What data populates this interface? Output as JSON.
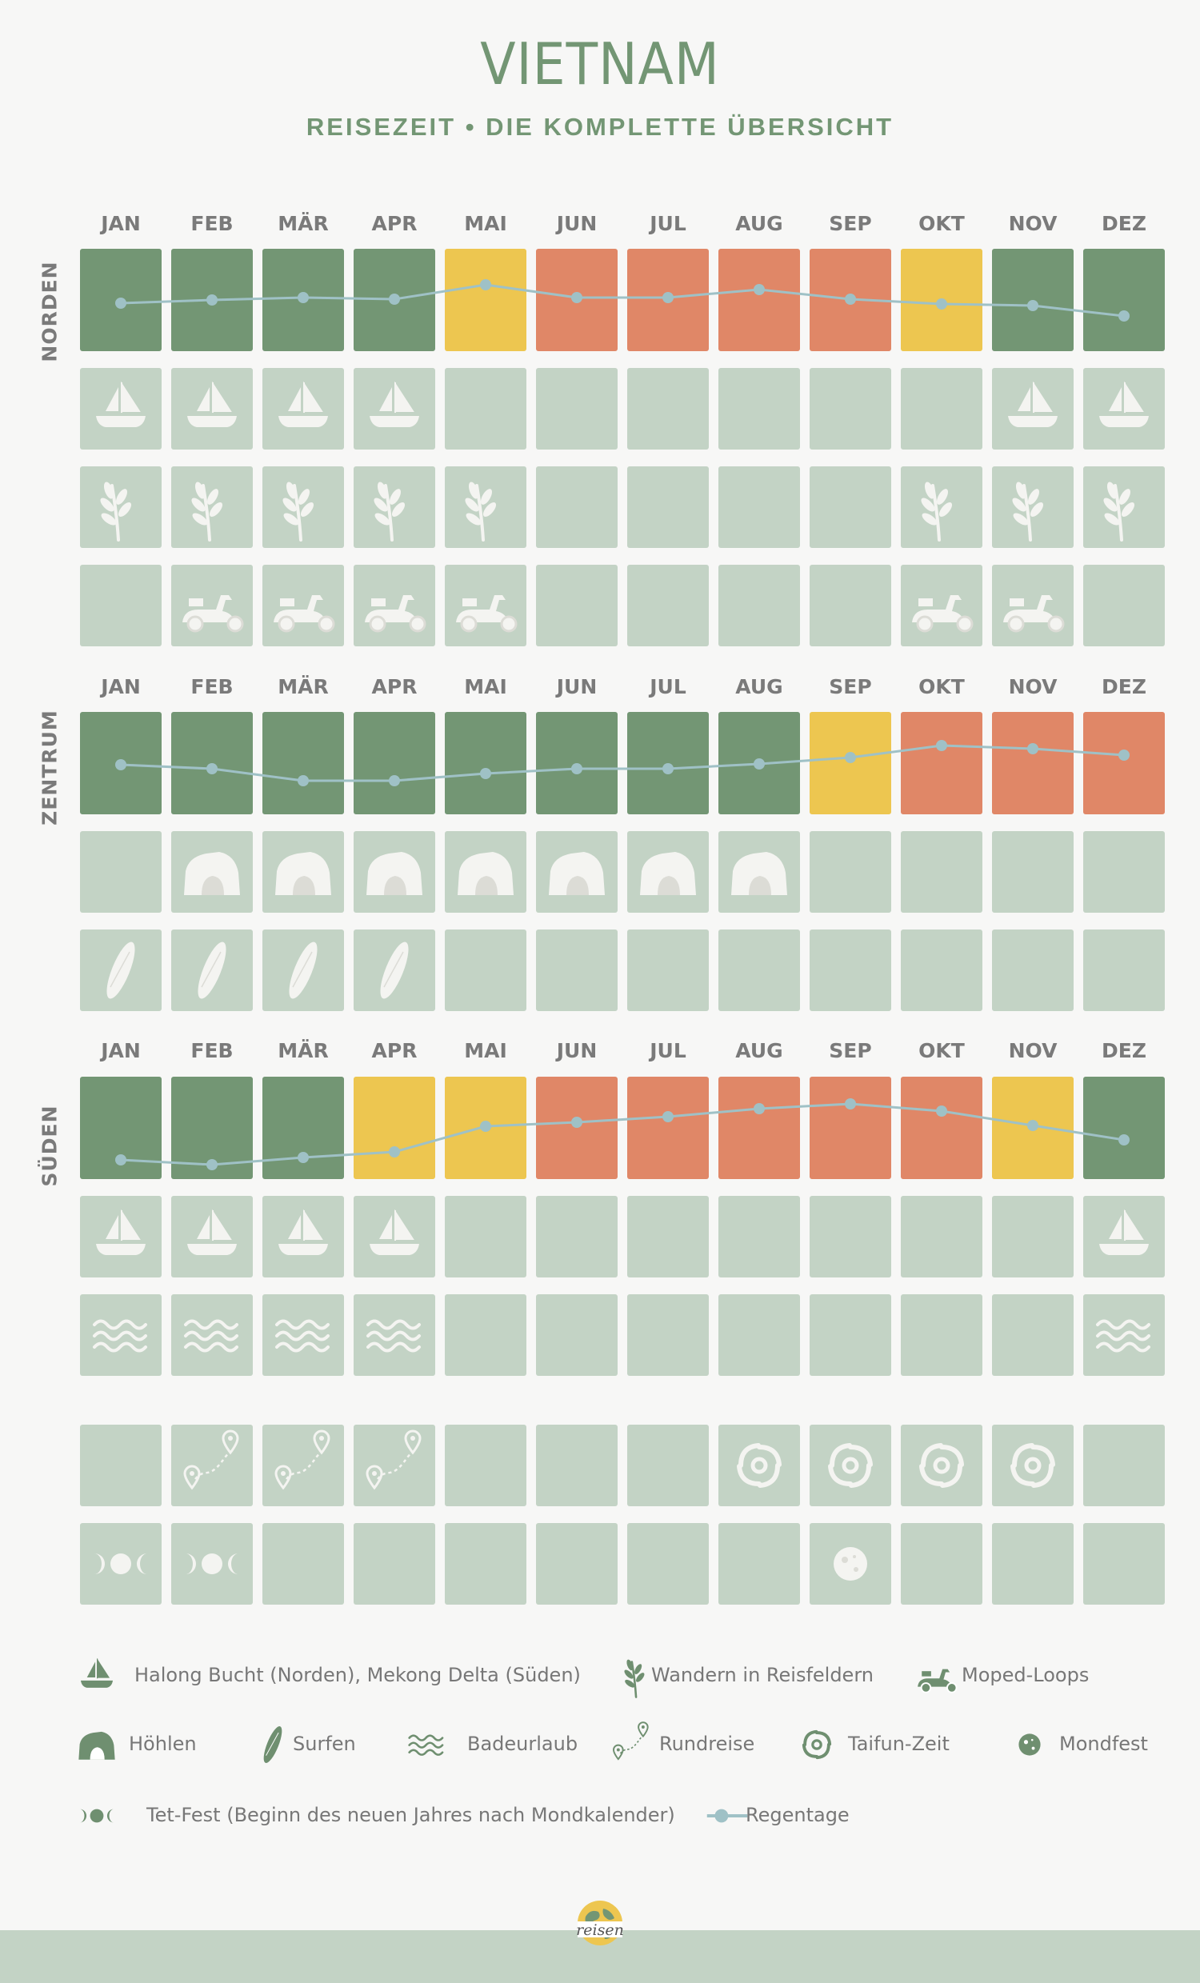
{
  "title": "VIETNAM",
  "subtitle": "REISEZEIT • DIE KOMPLETTE ÜBERSICHT",
  "months": [
    "JAN",
    "FEB",
    "MÄR",
    "APR",
    "MAI",
    "JUN",
    "JUL",
    "AUG",
    "SEP",
    "OKT",
    "NOV",
    "DEZ"
  ],
  "colors": {
    "good": "#739674",
    "mid": "#edc650",
    "bad": "#e08767",
    "empty": "#c3d3c5",
    "rain_line": "#9fc1c6",
    "icon": "#f4f4f1",
    "legend_icon": "#6f8f70"
  },
  "chart_data": [
    {
      "type": "heatmap",
      "region": "NORDEN",
      "categories": [
        "JAN",
        "FEB",
        "MÄR",
        "APR",
        "MAI",
        "JUN",
        "JUL",
        "AUG",
        "SEP",
        "OKT",
        "NOV",
        "DEZ"
      ],
      "climate_rating": [
        "good",
        "good",
        "good",
        "good",
        "mid",
        "bad",
        "bad",
        "bad",
        "bad",
        "mid",
        "good",
        "good"
      ],
      "rain_days_relative": [
        4.2,
        4.6,
        4.9,
        4.7,
        6.5,
        4.9,
        4.9,
        5.9,
        4.7,
        4.1,
        3.9,
        2.6
      ],
      "activity_rows": [
        {
          "icon": "boat-icon",
          "months": [
            1,
            1,
            1,
            1,
            0,
            0,
            0,
            0,
            0,
            0,
            1,
            1
          ]
        },
        {
          "icon": "rice-plant-icon",
          "months": [
            1,
            1,
            1,
            1,
            1,
            0,
            0,
            0,
            0,
            1,
            1,
            1
          ]
        },
        {
          "icon": "moped-icon",
          "months": [
            0,
            1,
            1,
            1,
            1,
            0,
            0,
            0,
            0,
            1,
            1,
            0
          ]
        }
      ]
    },
    {
      "type": "heatmap",
      "region": "ZENTRUM",
      "categories": [
        "JAN",
        "FEB",
        "MÄR",
        "APR",
        "MAI",
        "JUN",
        "JUL",
        "AUG",
        "SEP",
        "OKT",
        "NOV",
        "DEZ"
      ],
      "climate_rating": [
        "good",
        "good",
        "good",
        "good",
        "good",
        "good",
        "good",
        "good",
        "mid",
        "bad",
        "bad",
        "bad"
      ],
      "rain_days_relative": [
        4.4,
        3.9,
        2.4,
        2.4,
        3.3,
        3.9,
        3.9,
        4.5,
        5.3,
        6.8,
        6.4,
        5.6
      ],
      "activity_rows": [
        {
          "icon": "cave-icon",
          "months": [
            0,
            1,
            1,
            1,
            1,
            1,
            1,
            1,
            0,
            0,
            0,
            0
          ]
        },
        {
          "icon": "surfboard-icon",
          "months": [
            1,
            1,
            1,
            1,
            0,
            0,
            0,
            0,
            0,
            0,
            0,
            0
          ]
        }
      ]
    },
    {
      "type": "heatmap",
      "region": "SÜDEN",
      "categories": [
        "JAN",
        "FEB",
        "MÄR",
        "APR",
        "MAI",
        "JUN",
        "JUL",
        "AUG",
        "SEP",
        "OKT",
        "NOV",
        "DEZ"
      ],
      "climate_rating": [
        "good",
        "good",
        "good",
        "mid",
        "mid",
        "bad",
        "bad",
        "bad",
        "bad",
        "bad",
        "mid",
        "good"
      ],
      "rain_days_relative": [
        0.6,
        0.0,
        0.9,
        1.6,
        4.8,
        5.3,
        6.0,
        7.0,
        7.6,
        6.7,
        4.9,
        3.1
      ],
      "activity_rows": [
        {
          "icon": "boat-icon",
          "months": [
            1,
            1,
            1,
            1,
            0,
            0,
            0,
            0,
            0,
            0,
            0,
            1
          ]
        },
        {
          "icon": "waves-icon",
          "months": [
            1,
            1,
            1,
            1,
            0,
            0,
            0,
            0,
            0,
            0,
            0,
            1
          ]
        }
      ]
    },
    {
      "type": "heatmap",
      "region": "",
      "categories": [
        "JAN",
        "FEB",
        "MÄR",
        "APR",
        "MAI",
        "JUN",
        "JUL",
        "AUG",
        "SEP",
        "OKT",
        "NOV",
        "DEZ"
      ],
      "activity_rows": [
        {
          "icon": "route-icon",
          "months": [
            0,
            1,
            1,
            1,
            0,
            0,
            0,
            0,
            0,
            0,
            0,
            0
          ]
        },
        {
          "icon": "typhoon-icon",
          "months": [
            0,
            0,
            0,
            0,
            0,
            0,
            0,
            1,
            1,
            1,
            1,
            0
          ]
        },
        {
          "icon": "moon-phases-icon",
          "months": [
            1,
            1,
            0,
            0,
            0,
            0,
            0,
            0,
            0,
            0,
            0,
            0
          ]
        },
        {
          "icon": "full-moon-icon",
          "months": [
            0,
            0,
            0,
            0,
            0,
            0,
            0,
            0,
            1,
            0,
            0,
            0
          ]
        }
      ]
    }
  ],
  "legend": [
    {
      "icon": "boat-icon",
      "label": "Halong Bucht (Norden), Mekong Delta  (Süden)"
    },
    {
      "icon": "rice-plant-icon",
      "label": "Wandern in Reisfeldern"
    },
    {
      "icon": "moped-icon",
      "label": "Moped-Loops"
    },
    {
      "icon": "cave-icon",
      "label": "Höhlen"
    },
    {
      "icon": "surfboard-icon",
      "label": "Surfen"
    },
    {
      "icon": "waves-icon",
      "label": "Badeurlaub"
    },
    {
      "icon": "route-icon",
      "label": "Rundreise"
    },
    {
      "icon": "typhoon-icon",
      "label": "Taifun-Zeit"
    },
    {
      "icon": "full-moon-icon",
      "label": "Mondfest"
    },
    {
      "icon": "moon-phases-icon",
      "label": "Tet-Fest (Beginn des neuen Jahres nach Mondkalender)"
    },
    {
      "icon": "rain-line-icon",
      "label": "Regentage"
    }
  ],
  "logo": {
    "small_text": "reisen",
    "caption": "reisen"
  }
}
